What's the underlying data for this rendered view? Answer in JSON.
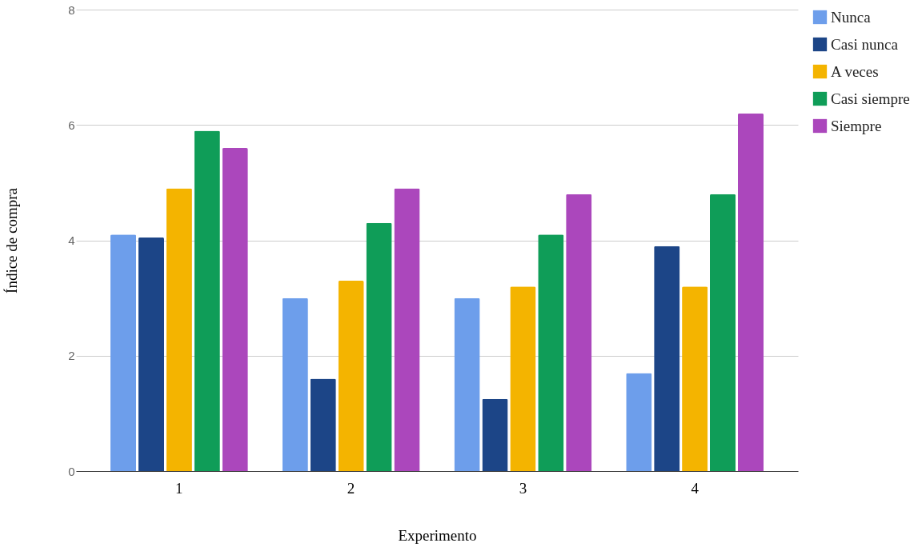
{
  "chart_data": {
    "type": "bar",
    "xlabel": "Experimento",
    "ylabel": "Índice de compra",
    "categories": [
      "1",
      "2",
      "3",
      "4"
    ],
    "series": [
      {
        "name": "Nunca",
        "color": "#6d9eeb",
        "values": [
          4.1,
          3.0,
          3.0,
          1.7
        ]
      },
      {
        "name": "Casi nunca",
        "color": "#1c4587",
        "values": [
          4.05,
          1.6,
          1.25,
          3.9
        ]
      },
      {
        "name": "A veces",
        "color": "#f4b400",
        "values": [
          4.9,
          3.3,
          3.2,
          3.2
        ]
      },
      {
        "name": "Casi siempre",
        "color": "#0f9d58",
        "values": [
          5.9,
          4.3,
          4.1,
          4.8
        ]
      },
      {
        "name": "Siempre",
        "color": "#ab47bc",
        "values": [
          5.6,
          4.9,
          4.8,
          6.2
        ]
      }
    ],
    "ylim": [
      0,
      8
    ],
    "yticks": [
      0,
      2,
      4,
      6,
      8
    ],
    "grid": "y",
    "legend": "top right"
  }
}
